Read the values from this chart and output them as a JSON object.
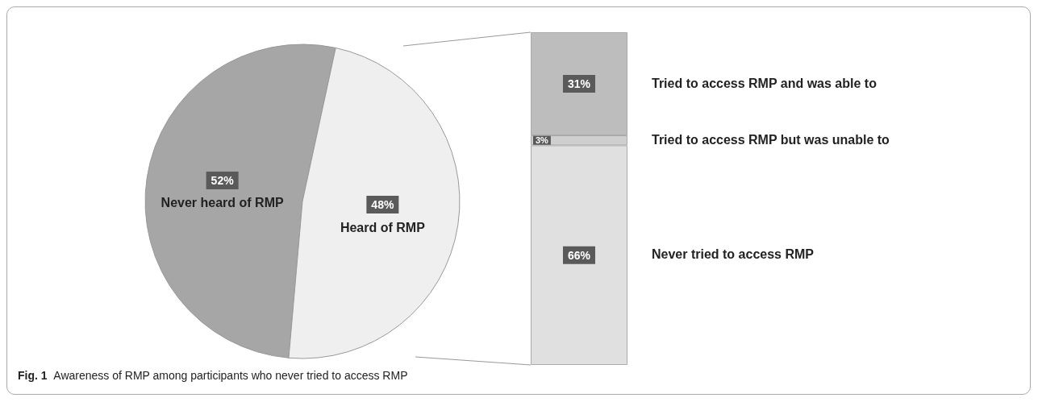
{
  "chart_data": [
    {
      "type": "pie",
      "categories": [
        "Never heard of RMP",
        "Heard of RMP"
      ],
      "values": [
        52,
        48
      ],
      "value_labels": [
        "52%",
        "48%"
      ],
      "colors": [
        "#a6a6a6",
        "#efefef"
      ]
    },
    {
      "type": "bar",
      "stacked": true,
      "categories": [
        null
      ],
      "ylim": [
        0,
        100
      ],
      "annotations": [
        "Fig. 1  Awareness of RMP among participants who never tried to access RMP"
      ],
      "series": [
        {
          "name": "Never tried to access RMP",
          "color": "#e0e0e0",
          "values": [
            66
          ],
          "value_labels": [
            "66%"
          ]
        },
        {
          "name": "Tried to access RMP but was unable to",
          "color": "#cfcfcf",
          "values": [
            3
          ],
          "value_labels": [
            "3%"
          ]
        },
        {
          "name": "Tried to access RMP and was able to",
          "color": "#bdbdbd",
          "values": [
            31
          ],
          "value_labels": [
            "31%"
          ]
        }
      ]
    }
  ]
}
